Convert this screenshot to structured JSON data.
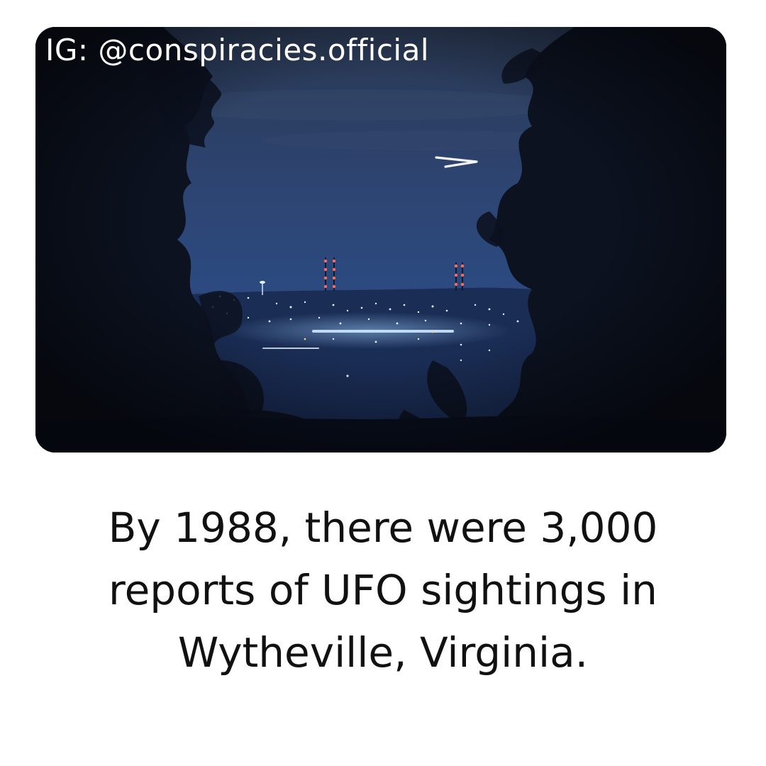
{
  "photo": {
    "watermark": "IG: @conspiracies.official",
    "subject": "night-sky-ufo-over-city-lights"
  },
  "caption": {
    "text": "By 1988, there were 3,000 reports of UFO sightings in Wytheville, Virginia."
  },
  "colors": {
    "sky_top": "#2b3a58",
    "sky_mid": "#2f4a7a",
    "horizon": "#1f3360",
    "foliage": "#0c1220",
    "city_light": "#e8f2ff",
    "tower_light": "#ff6a5a",
    "caption_text": "#111111",
    "background": "#ffffff"
  }
}
